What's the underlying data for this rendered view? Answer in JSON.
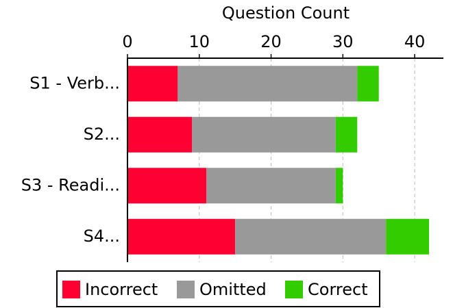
{
  "chart_data": {
    "type": "stacked-barh",
    "x_label": "Question Count",
    "categories": [
      "S1 - Verb...",
      "S2...",
      "S3 - Readi...",
      "S4..."
    ],
    "series": [
      {
        "name": "Incorrect",
        "color": "#ff0033",
        "values": [
          7,
          9,
          11,
          15
        ]
      },
      {
        "name": "Omitted",
        "color": "#999999",
        "values": [
          25,
          20,
          18,
          21
        ]
      },
      {
        "name": "Correct",
        "color": "#33cc00",
        "values": [
          3,
          3,
          1,
          6
        ]
      }
    ],
    "xlim": [
      0,
      44
    ],
    "xticks": [
      0,
      10,
      20,
      30,
      40
    ],
    "grid": true
  }
}
